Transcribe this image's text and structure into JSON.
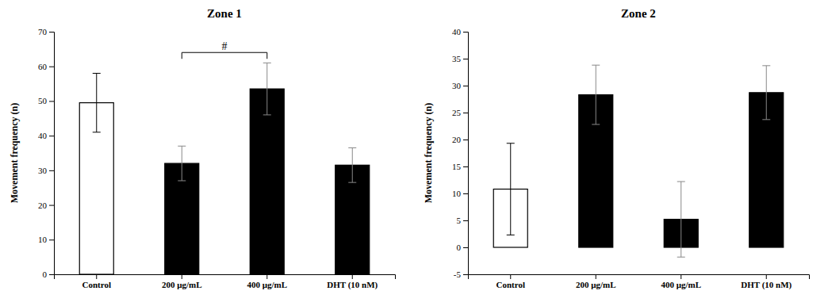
{
  "chart_data": [
    {
      "type": "bar",
      "title": "Zone 1",
      "categories": [
        "Control",
        "200 μg/mL",
        "400 μg/mL",
        "DHT (10 nM)"
      ],
      "values": [
        49.5,
        32.0,
        53.5,
        31.5
      ],
      "errors": [
        8.5,
        5.0,
        7.5,
        5.0
      ],
      "colors": [
        "white",
        "black",
        "black",
        "black"
      ],
      "ylabel": "Movement frequency (n)",
      "ylim": [
        0,
        70
      ],
      "yticks": [
        0,
        10,
        20,
        30,
        40,
        50,
        60,
        70
      ],
      "grid": false,
      "annotations": [
        {
          "text": "#",
          "x": [
            "200 μg/mL",
            "400 μg/mL"
          ],
          "y": 64
        }
      ]
    },
    {
      "type": "bar",
      "title": "Zone 2",
      "categories": [
        "Control",
        "200 μg/mL",
        "400 μg/mL",
        "DHT (10 nM)"
      ],
      "values": [
        10.8,
        28.3,
        5.2,
        28.7
      ],
      "errors": [
        8.5,
        5.5,
        7.0,
        5.0
      ],
      "colors": [
        "white",
        "black",
        "black",
        "black"
      ],
      "ylabel": "Movement frequency (n)",
      "ylim": [
        -5,
        40
      ],
      "yticks": [
        -5,
        0,
        5,
        10,
        15,
        20,
        25,
        30,
        35,
        40
      ],
      "grid": false
    }
  ]
}
